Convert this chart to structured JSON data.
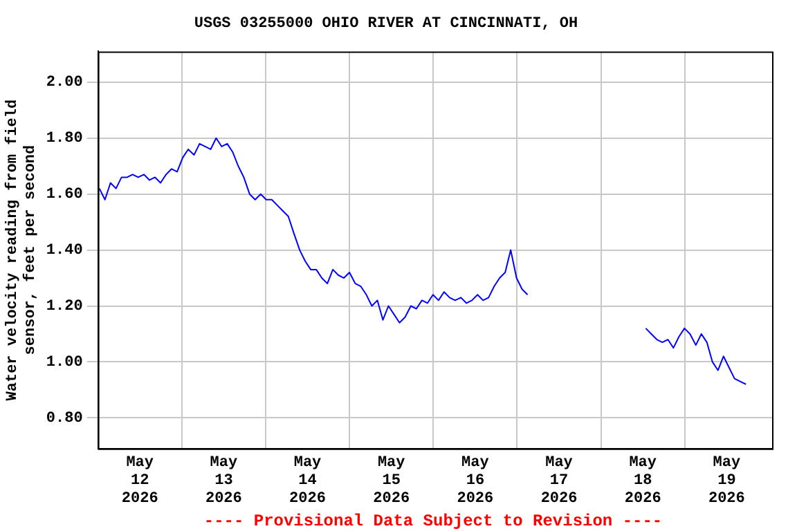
{
  "chart_data": {
    "type": "line",
    "title": "USGS 03255000 OHIO RIVER AT CINCINNATI, OH",
    "ylabel": "Water velocity reading from field sensor, feet per second",
    "annotations": [
      "---- Provisional Data Subject to Revision ----"
    ],
    "x": [
      "2026-05-12T00:24",
      "2026-05-12T02:00",
      "2026-05-12T03:35",
      "2026-05-12T05:10",
      "2026-05-12T06:45",
      "2026-05-12T08:20",
      "2026-05-12T09:55",
      "2026-05-12T11:30",
      "2026-05-12T13:10",
      "2026-05-12T14:45",
      "2026-05-12T16:20",
      "2026-05-12T17:55",
      "2026-05-12T19:30",
      "2026-05-12T21:05",
      "2026-05-12T22:40",
      "2026-05-13T00:15",
      "2026-05-13T01:50",
      "2026-05-13T03:30",
      "2026-05-13T05:05",
      "2026-05-13T06:40",
      "2026-05-13T08:15",
      "2026-05-13T09:50",
      "2026-05-13T11:25",
      "2026-05-13T13:00",
      "2026-05-13T14:35",
      "2026-05-13T16:10",
      "2026-05-13T17:45",
      "2026-05-13T19:25",
      "2026-05-13T21:00",
      "2026-05-13T22:35",
      "2026-05-14T00:10",
      "2026-05-14T01:45",
      "2026-05-14T03:20",
      "2026-05-14T04:55",
      "2026-05-14T06:30",
      "2026-05-14T08:05",
      "2026-05-14T09:45",
      "2026-05-14T11:20",
      "2026-05-14T12:55",
      "2026-05-14T14:30",
      "2026-05-14T16:05",
      "2026-05-14T17:40",
      "2026-05-14T19:15",
      "2026-05-14T20:50",
      "2026-05-14T22:25",
      "2026-05-15T00:00",
      "2026-05-15T01:40",
      "2026-05-15T03:15",
      "2026-05-15T04:50",
      "2026-05-15T06:25",
      "2026-05-15T08:00",
      "2026-05-15T09:35",
      "2026-05-15T11:10",
      "2026-05-15T12:45",
      "2026-05-15T14:20",
      "2026-05-15T15:55",
      "2026-05-15T17:35",
      "2026-05-15T19:10",
      "2026-05-15T20:45",
      "2026-05-15T22:20",
      "2026-05-15T23:55",
      "2026-05-16T01:30",
      "2026-05-16T03:05",
      "2026-05-16T04:40",
      "2026-05-16T06:15",
      "2026-05-16T07:55",
      "2026-05-16T09:30",
      "2026-05-16T11:05",
      "2026-05-16T12:40",
      "2026-05-16T14:15",
      "2026-05-16T15:50",
      "2026-05-16T17:25",
      "2026-05-16T19:00",
      "2026-05-16T20:35",
      "2026-05-16T22:10",
      "2026-05-16T23:50",
      "2026-05-17T01:25",
      "2026-05-17T03:00",
      "2026-05-17T20:00",
      "2026-05-18T12:50",
      "2026-05-18T14:25",
      "2026-05-18T16:00",
      "2026-05-18T17:35",
      "2026-05-18T19:10",
      "2026-05-18T20:45",
      "2026-05-18T22:20",
      "2026-05-18T23:55",
      "2026-05-19T01:30",
      "2026-05-19T03:10",
      "2026-05-19T04:45",
      "2026-05-19T06:20",
      "2026-05-19T07:55",
      "2026-05-19T09:30",
      "2026-05-19T11:05",
      "2026-05-19T12:40",
      "2026-05-19T14:15",
      "2026-05-19T15:50",
      "2026-05-19T17:30"
    ],
    "series": [
      {
        "color": "#0000ff",
        "values": [
          1.62,
          1.58,
          1.64,
          1.62,
          1.66,
          1.66,
          1.67,
          1.66,
          1.67,
          1.65,
          1.66,
          1.64,
          1.67,
          1.69,
          1.68,
          1.73,
          1.76,
          1.74,
          1.78,
          1.77,
          1.76,
          1.8,
          1.77,
          1.78,
          1.75,
          1.7,
          1.66,
          1.6,
          1.58,
          1.6,
          1.58,
          1.58,
          1.56,
          1.54,
          1.52,
          1.46,
          1.4,
          1.36,
          1.33,
          1.33,
          1.3,
          1.28,
          1.33,
          1.31,
          1.3,
          1.32,
          1.28,
          1.27,
          1.24,
          1.2,
          1.22,
          1.15,
          1.2,
          1.17,
          1.14,
          1.16,
          1.2,
          1.19,
          1.22,
          1.21,
          1.24,
          1.22,
          1.25,
          1.23,
          1.22,
          1.23,
          1.21,
          1.22,
          1.24,
          1.22,
          1.23,
          1.27,
          1.3,
          1.32,
          1.4,
          1.3,
          1.26,
          1.24,
          null,
          1.12,
          1.1,
          1.08,
          1.07,
          1.08,
          1.05,
          1.09,
          1.12,
          1.1,
          1.06,
          1.1,
          1.07,
          1.0,
          0.97,
          1.02,
          0.98,
          0.94,
          0.93,
          0.92
        ]
      }
    ],
    "xlim": [
      "2026-05-12T00:00",
      "2026-05-20T01:00"
    ],
    "xticks": [
      {
        "value": "2026-05-12T12:00",
        "label": "May 12 2026"
      },
      {
        "value": "2026-05-13T00:00",
        "label": null
      },
      {
        "value": "2026-05-13T12:00",
        "label": "May 13 2026"
      },
      {
        "value": "2026-05-14T00:00",
        "label": null
      },
      {
        "value": "2026-05-14T12:00",
        "label": "May 14 2026"
      },
      {
        "value": "2026-05-15T00:00",
        "label": null
      },
      {
        "value": "2026-05-15T12:00",
        "label": "May 15 2026"
      },
      {
        "value": "2026-05-16T00:00",
        "label": null
      },
      {
        "value": "2026-05-16T12:00",
        "label": "May 16 2026"
      },
      {
        "value": "2026-05-17T00:00",
        "label": null
      },
      {
        "value": "2026-05-17T12:00",
        "label": "May 17 2026"
      },
      {
        "value": "2026-05-18T00:00",
        "label": null
      },
      {
        "value": "2026-05-18T12:00",
        "label": "May 18 2026"
      },
      {
        "value": "2026-05-19T00:00",
        "label": null
      },
      {
        "value": "2026-05-19T12:00",
        "label": "May 19 2026"
      }
    ],
    "ylim": [
      0.69,
      2.11
    ],
    "yticks": [
      {
        "value": 0.8,
        "label": "0.80"
      },
      {
        "value": 1.0,
        "label": "1.00"
      },
      {
        "value": 1.2,
        "label": "1.20"
      },
      {
        "value": 1.4,
        "label": "1.40"
      },
      {
        "value": 1.6,
        "label": "1.60"
      },
      {
        "value": 1.8,
        "label": "1.80"
      },
      {
        "value": 2.0,
        "label": "2.00"
      }
    ],
    "grid": true,
    "marker": "none",
    "line_style": "solid"
  }
}
